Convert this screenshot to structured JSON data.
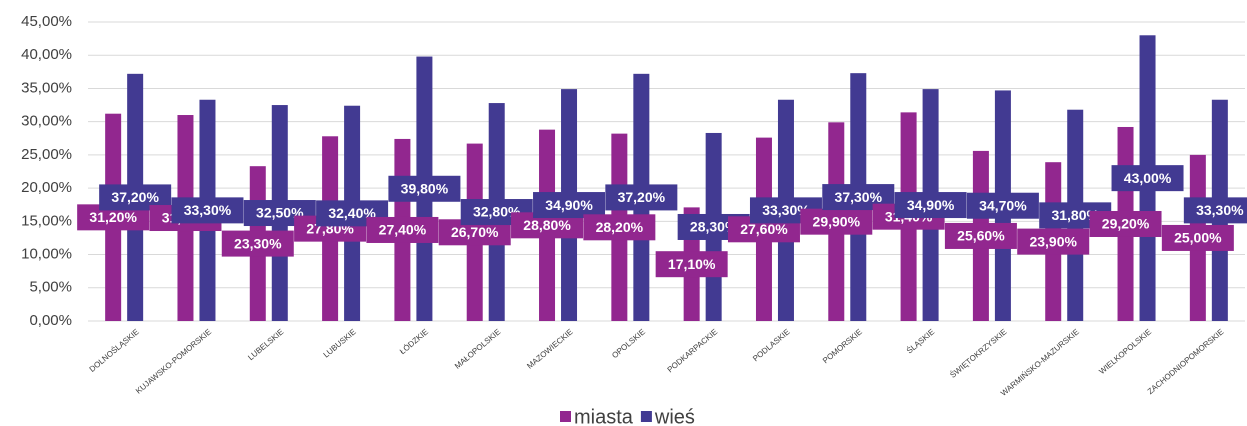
{
  "chart_data": {
    "type": "bar",
    "categories": [
      "DOLNOŚLĄSKIE",
      "KUJAWSKO-POMORSKIE",
      "LUBELSKIE",
      "LUBUSKIE",
      "ŁÓDZKIE",
      "MAŁOPOLSKIE",
      "MAZOWIECKIE",
      "OPOLSKIE",
      "PODKARPACKIE",
      "PODLASKIE",
      "POMORSKIE",
      "ŚLĄSKIE",
      "ŚWIĘTOKRZYSKIE",
      "WARMIŃSKO-MAZURSKIE",
      "WIELKOPOLSKIE",
      "ZACHODNIOPOMORSKIE"
    ],
    "series": [
      {
        "name": "miasta",
        "color": "#92278f",
        "values": [
          31.2,
          31.0,
          23.3,
          27.8,
          27.4,
          26.7,
          28.8,
          28.2,
          17.1,
          27.6,
          29.9,
          31.4,
          25.6,
          23.9,
          29.2,
          25.0
        ],
        "value_labels": [
          "31,20%",
          "31,00%",
          "23,30%",
          "27,80%",
          "27,40%",
          "26,70%",
          "28,80%",
          "28,20%",
          "17,10%",
          "27,60%",
          "29,90%",
          "31,40%",
          "25,60%",
          "23,90%",
          "29,20%",
          "25,00%"
        ]
      },
      {
        "name": "wieś",
        "color": "#423a92",
        "values": [
          37.2,
          33.3,
          32.5,
          32.4,
          39.8,
          32.8,
          34.9,
          37.2,
          28.3,
          33.3,
          37.3,
          34.9,
          34.7,
          31.8,
          43.0,
          33.3
        ],
        "value_labels": [
          "37,20%",
          "33,30%",
          "32,50%",
          "32,40%",
          "39,80%",
          "32,80%",
          "34,90%",
          "37,20%",
          "28,30%",
          "33,30%",
          "37,30%",
          "34,90%",
          "34,70%",
          "31,80%",
          "43,00%",
          "33,30%"
        ]
      }
    ],
    "ylim": [
      0,
      45
    ],
    "yticks": [
      {
        "value": 0,
        "label": "0,00%"
      },
      {
        "value": 5,
        "label": "5,00%"
      },
      {
        "value": 10,
        "label": "10,00%"
      },
      {
        "value": 15,
        "label": "15,00%"
      },
      {
        "value": 20,
        "label": "20,00%"
      },
      {
        "value": 25,
        "label": "25,00%"
      },
      {
        "value": 30,
        "label": "30,00%"
      },
      {
        "value": 35,
        "label": "35,00%"
      },
      {
        "value": 40,
        "label": "40,00%"
      },
      {
        "value": 45,
        "label": "45,00%"
      }
    ],
    "grid": true,
    "legend": "bottom"
  }
}
